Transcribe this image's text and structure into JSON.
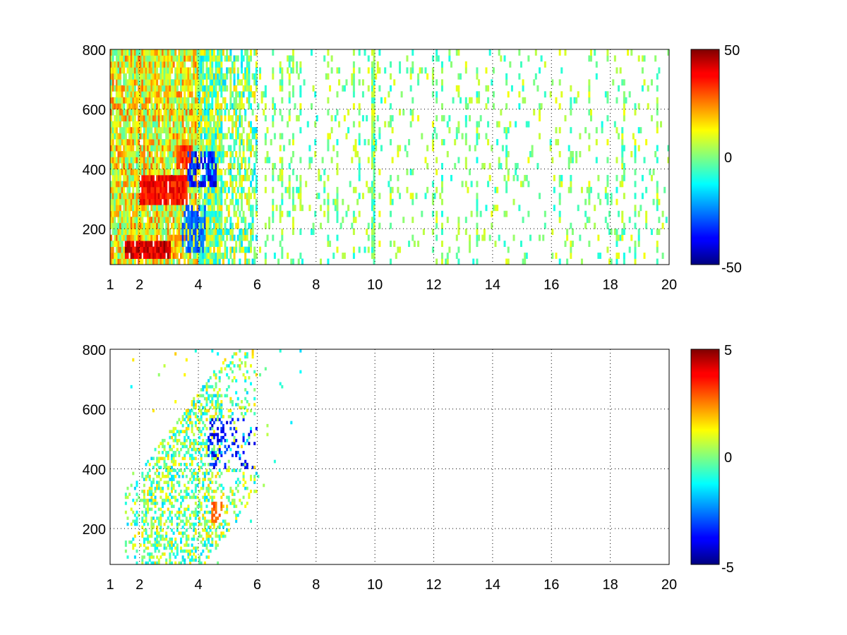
{
  "chart_data": [
    {
      "type": "heatmap",
      "title": "",
      "xlabel": "",
      "ylabel": "",
      "xlim": [
        1,
        20
      ],
      "ylim": [
        80,
        800
      ],
      "x_ticks": [
        1,
        2,
        4,
        6,
        8,
        10,
        12,
        14,
        16,
        18,
        20
      ],
      "x_tick_labels": [
        "1",
        "2",
        "4",
        "6",
        "8",
        "10",
        "12",
        "14",
        "16",
        "18",
        "20"
      ],
      "y_ticks": [
        200,
        400,
        600,
        800
      ],
      "y_tick_labels": [
        "200",
        "400",
        "600",
        "800"
      ],
      "grid": "dotted",
      "colormap": "jet",
      "colorbar": {
        "min": -50,
        "max": 50,
        "tick_labels": [
          "50",
          "0",
          "-50"
        ],
        "placement": "right"
      },
      "description_values": {
        "dense_region_x": [
          1.0,
          6.0
        ],
        "sparse_region_x": [
          6.0,
          20.0
        ],
        "hot_streaks": [
          {
            "x": [
              1.5,
              3.0
            ],
            "y": [
              100,
              140
            ],
            "value": 45
          },
          {
            "x": [
              2.0,
              3.6
            ],
            "y": [
              280,
              360
            ],
            "value": 40
          },
          {
            "x": [
              3.2,
              3.8
            ],
            "y": [
              400,
              470
            ],
            "value": 35
          }
        ],
        "cold_streaks": [
          {
            "x": [
              3.6,
              4.6
            ],
            "y": [
              340,
              450
            ],
            "value": -40
          },
          {
            "x": [
              3.4,
              4.2
            ],
            "y": [
              120,
              260
            ],
            "value": -30
          }
        ]
      },
      "cell_x_step": 0.0625,
      "cell_y_step": 20
    },
    {
      "type": "heatmap",
      "title": "",
      "xlabel": "",
      "ylabel": "",
      "xlim": [
        1,
        20
      ],
      "ylim": [
        80,
        800
      ],
      "x_ticks": [
        1,
        2,
        4,
        6,
        8,
        10,
        12,
        14,
        16,
        18,
        20
      ],
      "x_tick_labels": [
        "1",
        "2",
        "4",
        "6",
        "8",
        "10",
        "12",
        "14",
        "16",
        "18",
        "20"
      ],
      "y_ticks": [
        200,
        400,
        600,
        800
      ],
      "y_tick_labels": [
        "200",
        "400",
        "600",
        "800"
      ],
      "grid": "dotted",
      "colormap": "jet",
      "colorbar": {
        "min": -5,
        "max": 5,
        "tick_labels": [
          "5",
          "0",
          "-5"
        ],
        "placement": "right"
      },
      "description_values": {
        "dense_region_x": [
          1.5,
          6.0
        ],
        "dense_region_y": [
          80,
          780
        ],
        "cold_streaks": [
          {
            "x": [
              4.3,
              6.0
            ],
            "y": [
              400,
              560
            ],
            "value": -4
          }
        ],
        "warm_streaks": [
          {
            "x": [
              4.4,
              4.8
            ],
            "y": [
              220,
              280
            ],
            "value": 3
          }
        ]
      },
      "cell_x_step": 0.0625,
      "cell_y_step": 10
    }
  ]
}
